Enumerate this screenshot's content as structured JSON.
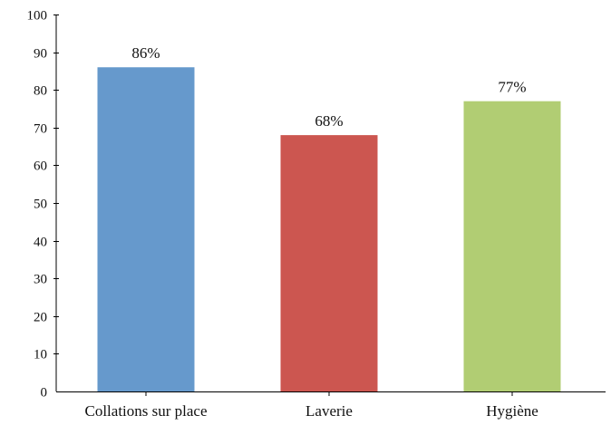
{
  "chart_data": {
    "type": "bar",
    "title": "",
    "xlabel": "",
    "ylabel": "",
    "categories": [
      "Collations sur place",
      "Laverie",
      "Hygiène"
    ],
    "values": [
      86,
      68,
      77
    ],
    "data_labels": [
      "86%",
      "68%",
      "77%"
    ],
    "colors": [
      "#6699cc",
      "#cc5650",
      "#b1cd73"
    ],
    "ylim": [
      0,
      100
    ],
    "yticks": [
      0,
      10,
      20,
      30,
      40,
      50,
      60,
      70,
      80,
      90,
      100
    ],
    "grid": false,
    "legend": "none"
  }
}
